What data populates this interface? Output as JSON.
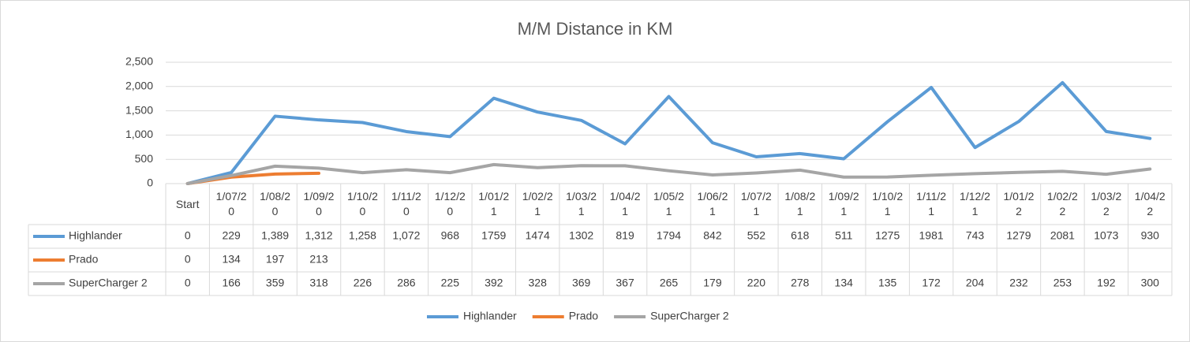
{
  "chart_data": {
    "type": "line",
    "title": "M/M Distance in KM",
    "categories": [
      "Start",
      "1/07/20",
      "1/08/20",
      "1/09/20",
      "1/10/20",
      "1/11/20",
      "1/12/20",
      "1/01/21",
      "1/02/21",
      "1/03/21",
      "1/04/21",
      "1/05/21",
      "1/06/21",
      "1/07/21",
      "1/08/21",
      "1/09/21",
      "1/10/21",
      "1/11/21",
      "1/12/21",
      "1/01/22",
      "1/02/22",
      "1/03/22",
      "1/04/22"
    ],
    "series": [
      {
        "name": "Highlander",
        "color": "#5b9bd5",
        "values": [
          0,
          229,
          1389,
          1312,
          1258,
          1072,
          968,
          1759,
          1474,
          1302,
          819,
          1794,
          842,
          552,
          618,
          511,
          1275,
          1981,
          743,
          1279,
          2081,
          1073,
          930
        ],
        "value_labels": [
          "0",
          "229",
          "1,389",
          "1,312",
          "1,258",
          "1,072",
          "968",
          "1759",
          "1474",
          "1302",
          "819",
          "1794",
          "842",
          "552",
          "618",
          "511",
          "1275",
          "1981",
          "743",
          "1279",
          "2081",
          "1073",
          "930"
        ]
      },
      {
        "name": "Prado",
        "color": "#ed7d31",
        "values": [
          0,
          134,
          197,
          213,
          null,
          null,
          null,
          null,
          null,
          null,
          null,
          null,
          null,
          null,
          null,
          null,
          null,
          null,
          null,
          null,
          null,
          null,
          null
        ]
      },
      {
        "name": "SuperCharger 2",
        "color": "#a5a5a5",
        "values": [
          0,
          166,
          359,
          318,
          226,
          286,
          225,
          392,
          328,
          369,
          367,
          265,
          179,
          220,
          278,
          134,
          135,
          172,
          204,
          232,
          253,
          192,
          300
        ]
      }
    ],
    "ylim": [
      0,
      2500
    ],
    "yticks": [
      0,
      500,
      {
        "value": 1000,
        "label": "1,000"
      },
      {
        "value": 1500,
        "label": "1,500"
      },
      {
        "value": 2000,
        "label": "2,000"
      },
      {
        "value": 2500,
        "label": "2,500"
      }
    ],
    "grid": true,
    "legend": "bottom"
  }
}
